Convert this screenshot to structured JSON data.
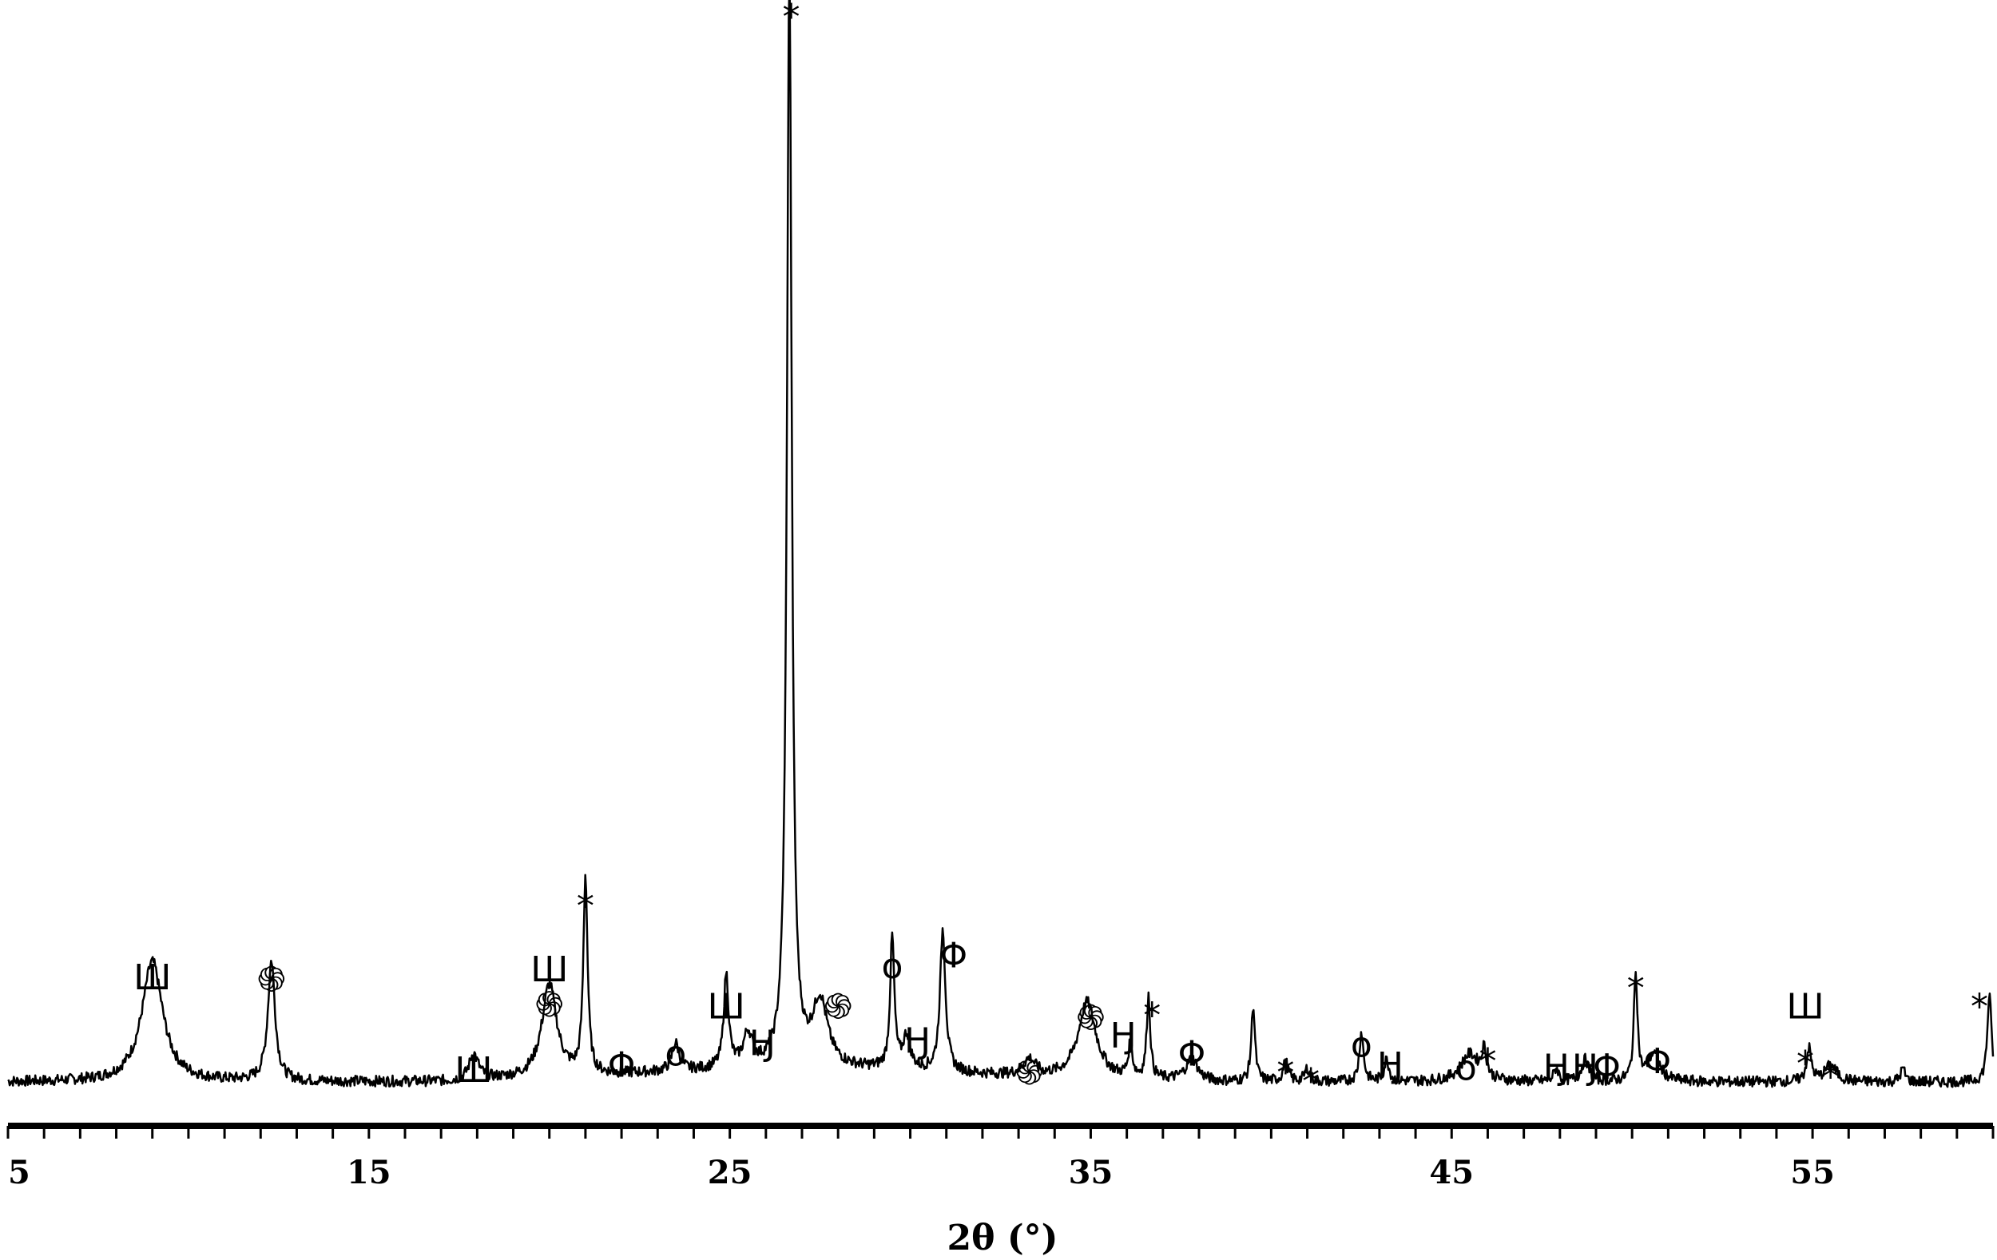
{
  "chart_data": {
    "type": "line",
    "title": "",
    "xlabel": "2θ (°)",
    "ylabel": "",
    "xlim": [
      5,
      60
    ],
    "ylim": [
      0,
      100
    ],
    "x_ticks": [
      5,
      15,
      25,
      35,
      45,
      55
    ],
    "grid": false,
    "legend": "none",
    "line_color": "#000000",
    "baseline": 4,
    "peaks": [
      {
        "x": 9.0,
        "h": 11,
        "w": 0.35
      },
      {
        "x": 12.3,
        "h": 11,
        "w": 0.12
      },
      {
        "x": 17.9,
        "h": 2.5,
        "w": 0.15
      },
      {
        "x": 20.0,
        "h": 8.5,
        "w": 0.25
      },
      {
        "x": 21.0,
        "h": 18,
        "w": 0.07
      },
      {
        "x": 23.5,
        "h": 2.5,
        "w": 0.12
      },
      {
        "x": 24.9,
        "h": 8.5,
        "w": 0.08
      },
      {
        "x": 25.5,
        "h": 3,
        "w": 0.15
      },
      {
        "x": 26.65,
        "h": 100,
        "w": 0.08
      },
      {
        "x": 27.5,
        "h": 6,
        "w": 0.25
      },
      {
        "x": 29.5,
        "h": 12,
        "w": 0.07
      },
      {
        "x": 29.9,
        "h": 3,
        "w": 0.12
      },
      {
        "x": 30.9,
        "h": 13,
        "w": 0.09
      },
      {
        "x": 33.3,
        "h": 1.5,
        "w": 0.2
      },
      {
        "x": 34.9,
        "h": 7,
        "w": 0.3
      },
      {
        "x": 36.1,
        "h": 3,
        "w": 0.07
      },
      {
        "x": 36.6,
        "h": 7.5,
        "w": 0.06
      },
      {
        "x": 37.8,
        "h": 2,
        "w": 0.2
      },
      {
        "x": 39.5,
        "h": 7,
        "w": 0.06
      },
      {
        "x": 40.4,
        "h": 1.8,
        "w": 0.08
      },
      {
        "x": 41.0,
        "h": 1.2,
        "w": 0.08
      },
      {
        "x": 42.5,
        "h": 4.5,
        "w": 0.07
      },
      {
        "x": 43.2,
        "h": 2,
        "w": 0.08
      },
      {
        "x": 45.5,
        "h": 2.5,
        "w": 0.3
      },
      {
        "x": 45.9,
        "h": 2.5,
        "w": 0.08
      },
      {
        "x": 47.9,
        "h": 1.2,
        "w": 0.08
      },
      {
        "x": 48.7,
        "h": 2,
        "w": 0.12
      },
      {
        "x": 50.1,
        "h": 10,
        "w": 0.06
      },
      {
        "x": 50.6,
        "h": 2.5,
        "w": 0.2
      },
      {
        "x": 54.9,
        "h": 3,
        "w": 0.08
      },
      {
        "x": 55.5,
        "h": 1.5,
        "w": 0.2
      },
      {
        "x": 57.5,
        "h": 1.2,
        "w": 0.08
      },
      {
        "x": 59.9,
        "h": 8,
        "w": 0.07
      }
    ],
    "markers": [
      {
        "symbol": "Ш",
        "x": 9.0,
        "h": 12.5
      },
      {
        "symbol": "֍",
        "x": 12.3,
        "h": 12.3
      },
      {
        "symbol": "Ш",
        "x": 17.9,
        "h": 4.0
      },
      {
        "symbol": "Ш",
        "x": 20.0,
        "h": 13.2
      },
      {
        "symbol": "֍",
        "x": 20.0,
        "h": 10.0
      },
      {
        "symbol": "*",
        "x": 21.0,
        "h": 19.0
      },
      {
        "symbol": "Φ",
        "x": 22.0,
        "h": 4.5
      },
      {
        "symbol": "o",
        "x": 23.5,
        "h": 5.5
      },
      {
        "symbol": "Ш",
        "x": 24.9,
        "h": 9.8
      },
      {
        "symbol": "Ӈ",
        "x": 25.9,
        "h": 6.5
      },
      {
        "symbol": "*",
        "x": 26.7,
        "h": 101
      },
      {
        "symbol": "֍",
        "x": 28.0,
        "h": 9.8
      },
      {
        "symbol": "o",
        "x": 29.5,
        "h": 13.5
      },
      {
        "symbol": "Ӈ",
        "x": 30.2,
        "h": 6.7
      },
      {
        "symbol": "Φ",
        "x": 31.2,
        "h": 14.5
      },
      {
        "symbol": "֍",
        "x": 33.3,
        "h": 3.8
      },
      {
        "symbol": "֍",
        "x": 35.0,
        "h": 8.8
      },
      {
        "symbol": "Ӈ",
        "x": 35.9,
        "h": 7.2
      },
      {
        "symbol": "*",
        "x": 36.7,
        "h": 9.0
      },
      {
        "symbol": "Φ",
        "x": 37.8,
        "h": 5.5
      },
      {
        "symbol": "*",
        "x": 40.4,
        "h": 3.8
      },
      {
        "symbol": "*",
        "x": 41.1,
        "h": 3.0
      },
      {
        "symbol": "o",
        "x": 42.5,
        "h": 6.3
      },
      {
        "symbol": "Ӈ",
        "x": 43.3,
        "h": 4.5
      },
      {
        "symbol": "o",
        "x": 45.4,
        "h": 4.2
      },
      {
        "symbol": "*",
        "x": 46.0,
        "h": 4.8
      },
      {
        "symbol": "Ӈ",
        "x": 47.9,
        "h": 4.3
      },
      {
        "symbol": "Ӈ",
        "x": 48.7,
        "h": 4.3
      },
      {
        "symbol": "Φ",
        "x": 49.3,
        "h": 4.3
      },
      {
        "symbol": "*",
        "x": 50.1,
        "h": 11.5
      },
      {
        "symbol": "Φ",
        "x": 50.7,
        "h": 4.8
      },
      {
        "symbol": "Ш",
        "x": 54.8,
        "h": 9.8
      },
      {
        "symbol": "*",
        "x": 54.8,
        "h": 4.6
      },
      {
        "symbol": "*",
        "x": 55.5,
        "h": 3.4
      },
      {
        "symbol": "*",
        "x": 59.9,
        "h": 9.8
      }
    ]
  }
}
